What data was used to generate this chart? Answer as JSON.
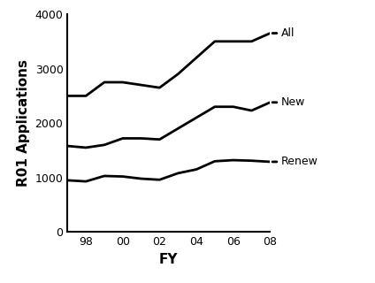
{
  "fiscal_years": [
    97,
    98,
    99,
    100,
    101,
    102,
    103,
    104,
    105,
    106,
    107,
    108
  ],
  "fy_ticks": [
    98,
    100,
    102,
    104,
    106,
    108
  ],
  "fy_tick_labels": [
    "98",
    "00",
    "02",
    "04",
    "06",
    "08"
  ],
  "all_values": [
    2500,
    2500,
    2750,
    2750,
    2700,
    2650,
    2900,
    3200,
    3500,
    3500,
    3500,
    3650
  ],
  "new_values": [
    1580,
    1550,
    1600,
    1720,
    1720,
    1700,
    1900,
    2100,
    2300,
    2300,
    2230,
    2380
  ],
  "renew_values": [
    950,
    930,
    1030,
    1020,
    980,
    960,
    1080,
    1150,
    1300,
    1320,
    1310,
    1290
  ],
  "line_color": "#000000",
  "line_width": 2.0,
  "ylabel": "R01 Applications",
  "xlabel": "FY",
  "ylim": [
    0,
    4000
  ],
  "xlim_left": 97,
  "xlim_right": 108,
  "label_all": "All",
  "label_new": "New",
  "label_renew": "Renew",
  "bg_color": "#ffffff",
  "fontsize_axis_label": 11,
  "fontsize_tick": 9,
  "fontsize_annot": 9,
  "yticks": [
    0,
    1000,
    2000,
    3000,
    4000
  ],
  "ytick_labels": [
    "0",
    "1000",
    "2000",
    "3000",
    "4000"
  ]
}
